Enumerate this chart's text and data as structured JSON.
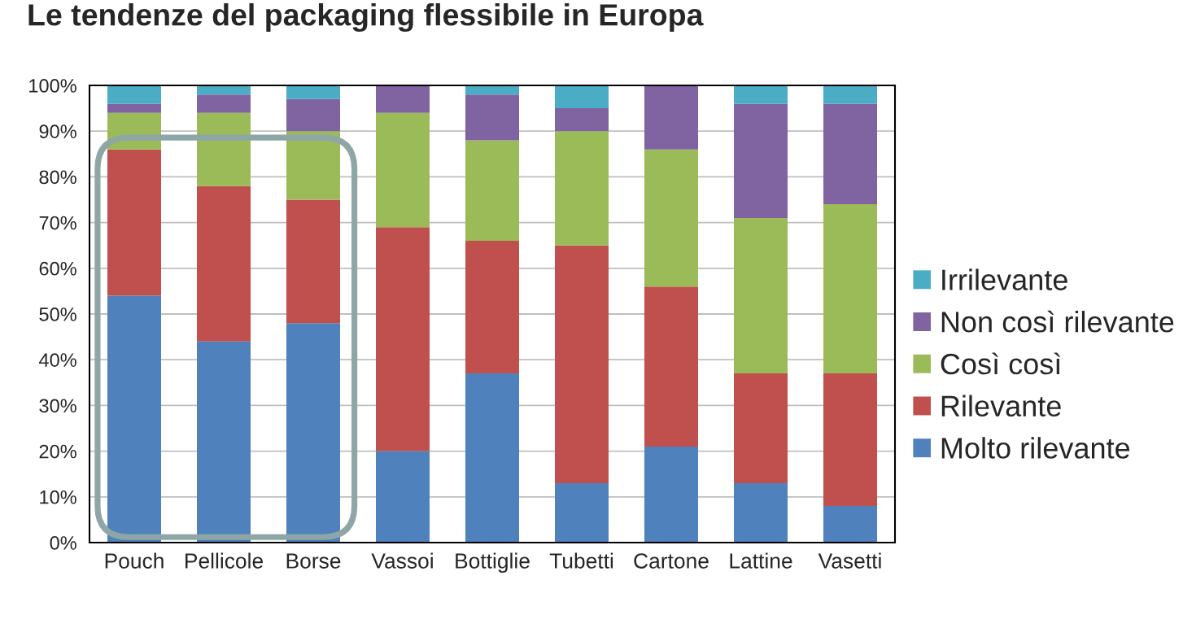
{
  "chart_data": {
    "type": "bar",
    "title": "Le tendenze del packaging flessibile in Europa",
    "categories": [
      "Pouch",
      "Pellicole",
      "Borse",
      "Vassoi",
      "Bottiglie",
      "Tubetti",
      "Cartone",
      "Lattine",
      "Vasetti"
    ],
    "stacked": true,
    "series": [
      {
        "name": "Molto rilevante",
        "color": "#4f81bd",
        "values": [
          54,
          44,
          48,
          20,
          37,
          13,
          21,
          13,
          8
        ]
      },
      {
        "name": "Rilevante",
        "color": "#c0504d",
        "values": [
          32,
          34,
          27,
          49,
          29,
          52,
          35,
          24,
          29
        ]
      },
      {
        "name": "Così così",
        "color": "#9bbb59",
        "values": [
          8,
          16,
          15,
          25,
          22,
          25,
          30,
          34,
          37
        ]
      },
      {
        "name": "Non così rilevante",
        "color": "#8064a2",
        "values": [
          2,
          4,
          7,
          6,
          10,
          5,
          14,
          25,
          22
        ]
      },
      {
        "name": "Irrilevante",
        "color": "#4bacc6",
        "values": [
          4,
          2,
          3,
          null,
          2,
          5,
          null,
          4,
          4
        ]
      }
    ],
    "ylim": [
      0,
      100
    ],
    "yticks": [
      {
        "value": 0,
        "label": "0%"
      },
      {
        "value": 10,
        "label": "10%"
      },
      {
        "value": 20,
        "label": "20%"
      },
      {
        "value": 30,
        "label": "30%"
      },
      {
        "value": 40,
        "label": "40%"
      },
      {
        "value": 50,
        "label": "50%"
      },
      {
        "value": 60,
        "label": "60%"
      },
      {
        "value": 70,
        "label": "70%"
      },
      {
        "value": 80,
        "label": "80%"
      },
      {
        "value": 90,
        "label": "90%"
      },
      {
        "value": 100,
        "label": "100%"
      }
    ],
    "grid": "y",
    "legend": "right"
  }
}
